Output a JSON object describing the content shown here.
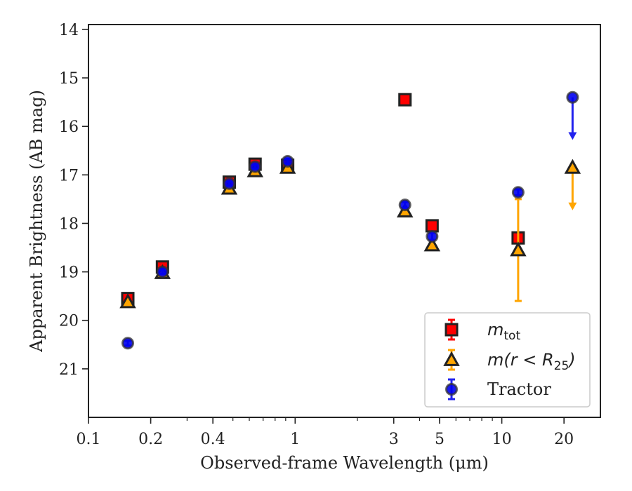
{
  "chart_data": {
    "type": "scatter",
    "xlabel": "Observed-frame Wavelength (μm)",
    "ylabel": "Apparent Brightness (AB mag)",
    "x_scale": "log",
    "xlim": [
      0.1,
      30
    ],
    "ylim": [
      22,
      13.9
    ],
    "y_inverted": true,
    "grid": false,
    "legend_position": "lower-right",
    "x_ticks": [
      {
        "value": 0.1,
        "label": "0.1"
      },
      {
        "value": 0.2,
        "label": "0.2"
      },
      {
        "value": 0.4,
        "label": "0.4"
      },
      {
        "value": 1,
        "label": "1"
      },
      {
        "value": 3,
        "label": "3"
      },
      {
        "value": 5,
        "label": "5"
      },
      {
        "value": 10,
        "label": "10"
      },
      {
        "value": 20,
        "label": "20"
      }
    ],
    "y_ticks": [
      {
        "value": 14,
        "label": "14"
      },
      {
        "value": 15,
        "label": "15"
      },
      {
        "value": 16,
        "label": "16"
      },
      {
        "value": 17,
        "label": "17"
      },
      {
        "value": 18,
        "label": "18"
      },
      {
        "value": 19,
        "label": "19"
      },
      {
        "value": 20,
        "label": "20"
      },
      {
        "value": 21,
        "label": "21"
      }
    ],
    "series": [
      {
        "name": "m_tot",
        "legend_label_base": "m",
        "legend_label_sub": "tot",
        "marker": "square",
        "fill": "#ff0000",
        "edge": "#222222",
        "errbar_color": "#ff0000",
        "points": [
          {
            "x": 0.155,
            "y": 19.55,
            "err": 0
          },
          {
            "x": 0.228,
            "y": 18.9,
            "err": 0
          },
          {
            "x": 0.48,
            "y": 17.15,
            "err": 0
          },
          {
            "x": 0.64,
            "y": 16.78,
            "err": 0
          },
          {
            "x": 0.92,
            "y": 16.8,
            "err": 0
          },
          {
            "x": 3.4,
            "y": 15.45,
            "err": 0
          },
          {
            "x": 4.6,
            "y": 18.05,
            "err": 0
          },
          {
            "x": 12.0,
            "y": 18.3,
            "err": 0
          }
        ]
      },
      {
        "name": "m(r < R_25)",
        "legend_label_base": "m(r < R",
        "legend_label_sub": "25",
        "legend_label_tail": ")",
        "marker": "triangle",
        "fill": "#ffa500",
        "edge": "#222222",
        "errbar_color": "#ffa500",
        "points": [
          {
            "x": 0.155,
            "y": 19.62,
            "err": 0
          },
          {
            "x": 0.228,
            "y": 19.02,
            "err": 0
          },
          {
            "x": 0.48,
            "y": 17.28,
            "err": 0
          },
          {
            "x": 0.64,
            "y": 16.92,
            "err": 0
          },
          {
            "x": 0.92,
            "y": 16.85,
            "err": 0
          },
          {
            "x": 3.4,
            "y": 17.75,
            "err": 0
          },
          {
            "x": 4.6,
            "y": 18.45,
            "err": 0
          },
          {
            "x": 12.0,
            "y": 18.55,
            "err_low": 1.05,
            "err_high": 1.05
          },
          {
            "x": 22.0,
            "y": 16.85,
            "upper_limit": true,
            "arrow_to": 17.7
          }
        ]
      },
      {
        "name": "Tractor",
        "marker": "circle",
        "fill": "#0000ee",
        "edge": "#333333",
        "errbar_color": "#2222ee",
        "points": [
          {
            "x": 0.155,
            "y": 20.47,
            "err": 0.05
          },
          {
            "x": 0.228,
            "y": 19.0,
            "err": 0.04
          },
          {
            "x": 0.48,
            "y": 17.18,
            "err": 0.04
          },
          {
            "x": 0.64,
            "y": 16.83,
            "err": 0.04
          },
          {
            "x": 0.92,
            "y": 16.72,
            "err": 0.05
          },
          {
            "x": 3.4,
            "y": 17.62,
            "err": 0.06
          },
          {
            "x": 4.6,
            "y": 18.27,
            "err": 0.07
          },
          {
            "x": 12.0,
            "y": 17.36,
            "err": 0.06
          },
          {
            "x": 22.0,
            "y": 15.4,
            "upper_limit": true,
            "arrow_to": 16.25
          }
        ]
      }
    ]
  }
}
